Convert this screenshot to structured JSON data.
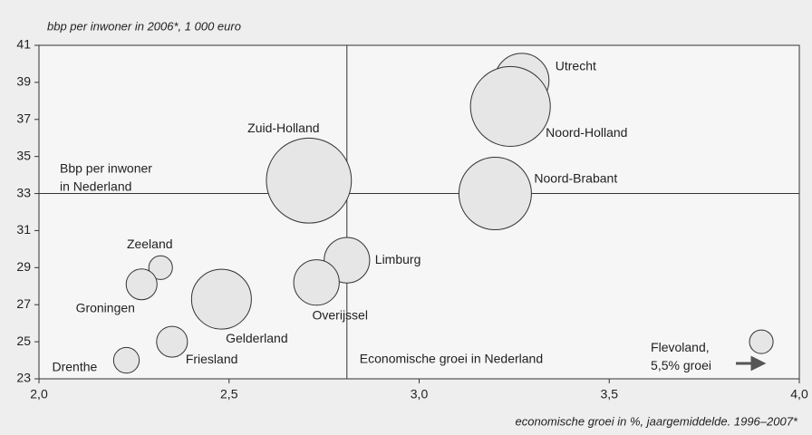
{
  "chart_data": {
    "type": "bubble",
    "title": "bbp per inwoner in 2006*, 1 000 euro",
    "x_label": "economische groei in %, jaargemiddelde. 1996–2007*",
    "xlim": [
      2.0,
      4.0
    ],
    "xticks": [
      {
        "value": 2.0,
        "label": "2,0"
      },
      {
        "value": 2.5,
        "label": "2,5"
      },
      {
        "value": 3.0,
        "label": "3,0"
      },
      {
        "value": 3.5,
        "label": "3,5"
      },
      {
        "value": 4.0,
        "label": "4,0"
      }
    ],
    "ylim": [
      23,
      41
    ],
    "yticks": [
      23,
      25,
      27,
      29,
      31,
      33,
      35,
      37,
      39,
      41
    ],
    "color": "#e6e6e6",
    "labels": [
      "Utrecht",
      "Noord-Holland",
      "Noord-Brabant",
      "Zuid-Holland",
      "Limburg",
      "Overijssel",
      "Gelderland",
      "Zeeland",
      "Groningen",
      "Friesland",
      "Drenthe",
      "Flevoland,"
    ],
    "x": [
      3.27,
      3.24,
      3.2,
      2.71,
      2.81,
      2.73,
      2.48,
      2.32,
      2.27,
      2.35,
      2.23,
      3.9
    ],
    "values": [
      39.1,
      37.7,
      33.0,
      33.7,
      29.4,
      28.2,
      27.3,
      29.0,
      28.1,
      25.0,
      24.0,
      25.0
    ],
    "sizes": [
      9,
      19.4,
      16,
      22,
      6.3,
      6.3,
      10.9,
      1.7,
      2.9,
      2.9,
      2.0,
      1.7
    ],
    "reference_x": 2.81,
    "reference_y": 33.0,
    "reference_y_label": [
      "Bbp per inwoner",
      "in Nederland"
    ],
    "reference_x_label": "Economische groei in Nederland",
    "note": "5,5% groei"
  }
}
